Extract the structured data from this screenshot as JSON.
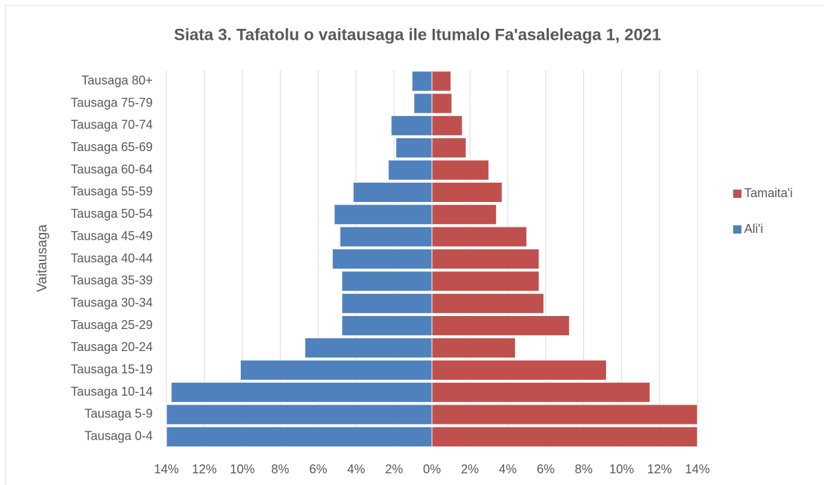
{
  "chart_data": {
    "type": "pyramid",
    "title": "Siata 3. Tafatolu o vaitausaga ile Itumalo Fa'asaleleaga 1, 2021",
    "y_label": "Vaitausaga",
    "categories": [
      "Tausaga 0-4",
      "Tausaga 5-9",
      "Tausaga 10-14",
      "Tausaga 15-19",
      "Tausaga 20-24",
      "Tausaga 25-29",
      "Tausaga 30-34",
      "Tausaga 35-39",
      "Tausaga 40-44",
      "Tausaga 45-49",
      "Tausaga 50-54",
      "Tausaga 55-59",
      "Tausaga 60-64",
      "Tausaga 65-69",
      "Tausaga 70-74",
      "Tausaga 75-79",
      "Tausaga 80+"
    ],
    "series": [
      {
        "name": "Tamaita'i",
        "color": "#c0504d",
        "values": [
          14,
          14,
          11.5,
          9.2,
          4.4,
          7.25,
          5.9,
          5.65,
          5.65,
          5.0,
          3.4,
          3.7,
          3.0,
          1.8,
          1.6,
          1.05,
          1.0
        ]
      },
      {
        "name": "Ali'i",
        "color": "#4f81bd",
        "values": [
          -14,
          -14,
          -13.75,
          -10.1,
          -6.7,
          -4.75,
          -4.75,
          -4.75,
          -5.25,
          -4.85,
          -5.15,
          -4.15,
          -2.3,
          -1.9,
          -2.15,
          -0.95,
          -1.05
        ]
      }
    ],
    "xlim": [
      -14,
      14
    ],
    "xticks": [
      {
        "value": -14,
        "label": "14%"
      },
      {
        "value": -12,
        "label": "12%"
      },
      {
        "value": -10,
        "label": "10%"
      },
      {
        "value": -8,
        "label": "8%"
      },
      {
        "value": -6,
        "label": "6%"
      },
      {
        "value": -4,
        "label": "4%"
      },
      {
        "value": -2,
        "label": "2%"
      },
      {
        "value": 0,
        "label": "0%"
      },
      {
        "value": 2,
        "label": "2%"
      },
      {
        "value": 4,
        "label": "4%"
      },
      {
        "value": 6,
        "label": "6%"
      },
      {
        "value": 8,
        "label": "8%"
      },
      {
        "value": 10,
        "label": "10%"
      },
      {
        "value": 12,
        "label": "12%"
      },
      {
        "value": 14,
        "label": "14%"
      }
    ],
    "grid": true,
    "legend": "right"
  }
}
